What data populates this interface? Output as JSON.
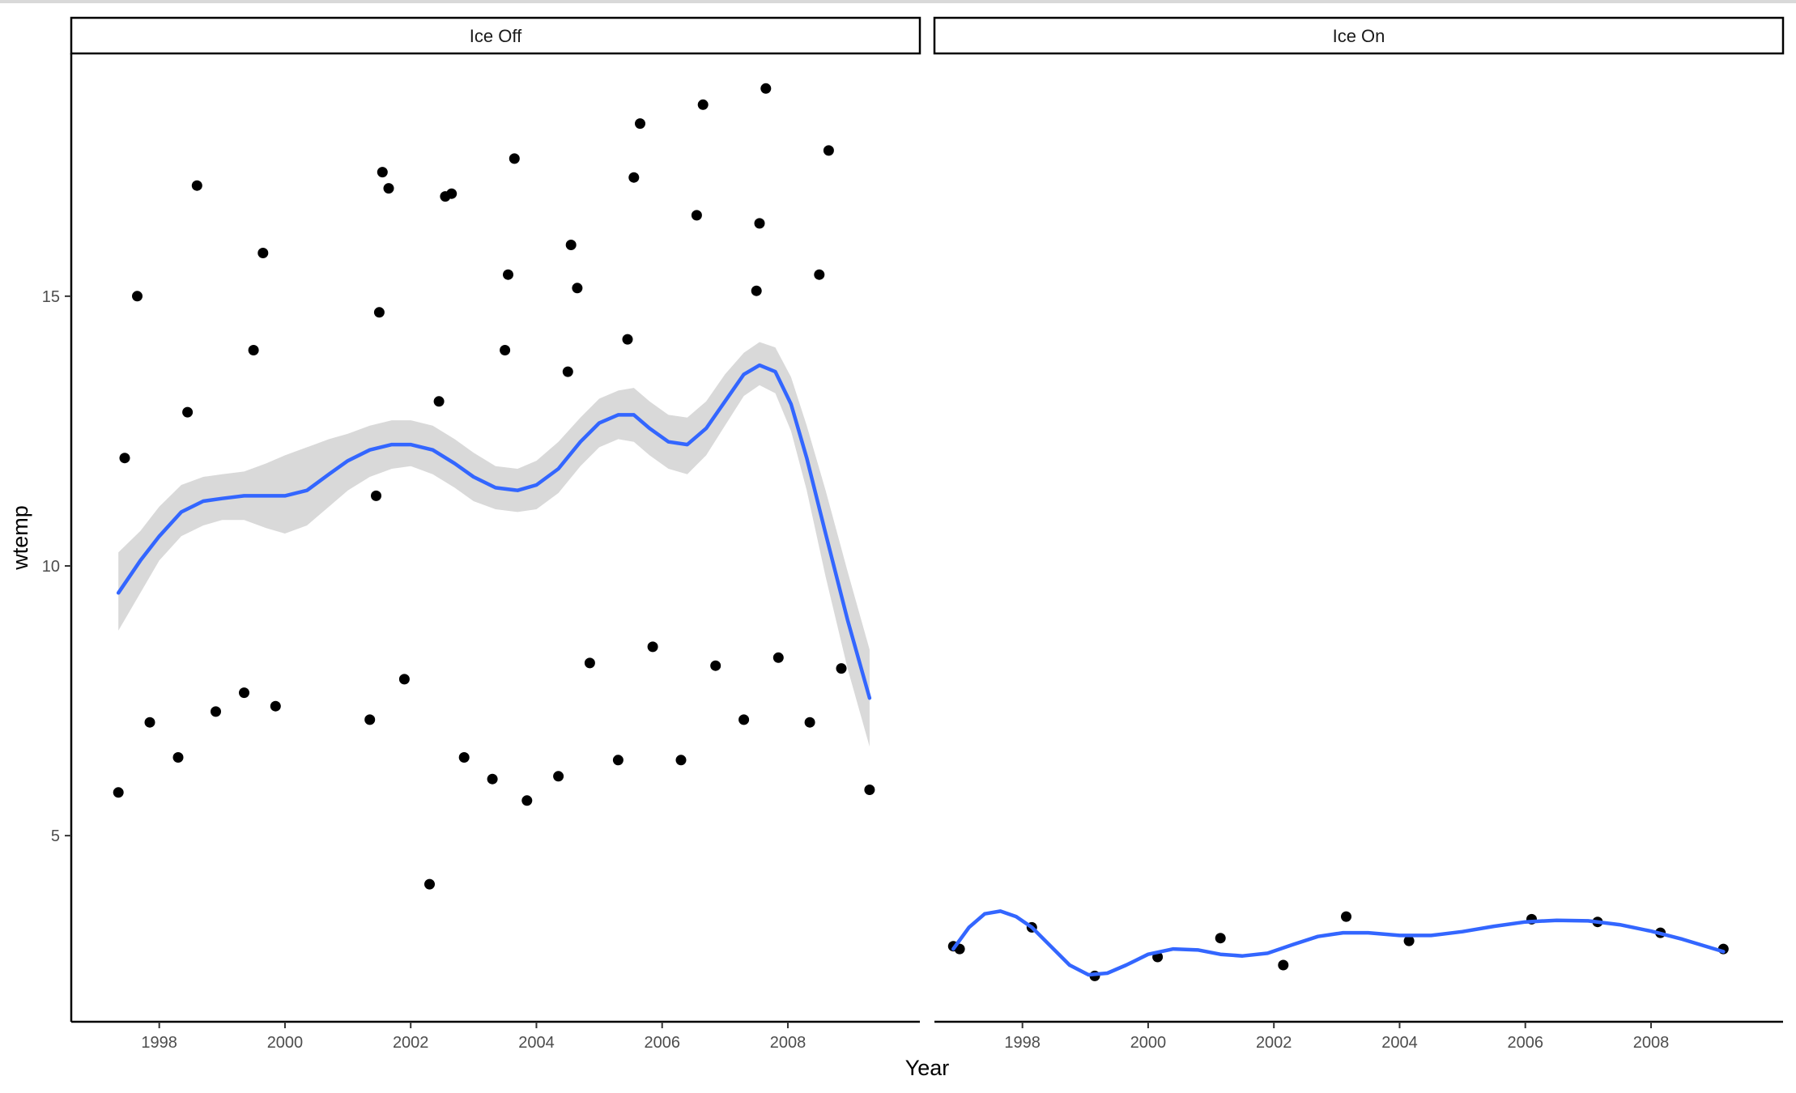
{
  "chart_data": {
    "type": "scatter",
    "xlabel": "Year",
    "ylabel": "wtemp",
    "x_ticks": [
      1998,
      2000,
      2002,
      2004,
      2006,
      2008
    ],
    "y_ticks": [
      5,
      10,
      15
    ],
    "xlim": [
      1996.6,
      2010.1
    ],
    "ylim": [
      1.55,
      19.5
    ],
    "grid": false,
    "point_color": "#000000",
    "smooth_color": "#3366FF",
    "ribbon_color": "#d9d9d9",
    "panels": [
      {
        "title": "Ice Off",
        "points": [
          {
            "x": 1997.35,
            "y": 5.8
          },
          {
            "x": 1997.45,
            "y": 12.0
          },
          {
            "x": 1997.65,
            "y": 15.0
          },
          {
            "x": 1997.85,
            "y": 7.1
          },
          {
            "x": 1998.3,
            "y": 6.45
          },
          {
            "x": 1998.45,
            "y": 12.85
          },
          {
            "x": 1998.6,
            "y": 17.05
          },
          {
            "x": 1998.9,
            "y": 7.3
          },
          {
            "x": 1999.35,
            "y": 7.65
          },
          {
            "x": 1999.5,
            "y": 14.0
          },
          {
            "x": 1999.65,
            "y": 15.8
          },
          {
            "x": 1999.85,
            "y": 7.4
          },
          {
            "x": 2001.35,
            "y": 7.15
          },
          {
            "x": 2001.45,
            "y": 11.3
          },
          {
            "x": 2001.5,
            "y": 14.7
          },
          {
            "x": 2001.55,
            "y": 17.3
          },
          {
            "x": 2001.65,
            "y": 17.0
          },
          {
            "x": 2001.9,
            "y": 7.9
          },
          {
            "x": 2002.3,
            "y": 4.1
          },
          {
            "x": 2002.45,
            "y": 13.05
          },
          {
            "x": 2002.55,
            "y": 16.85
          },
          {
            "x": 2002.65,
            "y": 16.9
          },
          {
            "x": 2002.85,
            "y": 6.45
          },
          {
            "x": 2003.3,
            "y": 6.05
          },
          {
            "x": 2003.5,
            "y": 14.0
          },
          {
            "x": 2003.55,
            "y": 15.4
          },
          {
            "x": 2003.65,
            "y": 17.55
          },
          {
            "x": 2003.85,
            "y": 5.65
          },
          {
            "x": 2004.35,
            "y": 6.1
          },
          {
            "x": 2004.5,
            "y": 13.6
          },
          {
            "x": 2004.55,
            "y": 15.95
          },
          {
            "x": 2004.65,
            "y": 15.15
          },
          {
            "x": 2004.85,
            "y": 8.2
          },
          {
            "x": 2005.3,
            "y": 6.4
          },
          {
            "x": 2005.45,
            "y": 14.2
          },
          {
            "x": 2005.55,
            "y": 17.2
          },
          {
            "x": 2005.65,
            "y": 18.2
          },
          {
            "x": 2005.85,
            "y": 8.5
          },
          {
            "x": 2006.3,
            "y": 6.4
          },
          {
            "x": 2006.55,
            "y": 16.5
          },
          {
            "x": 2006.65,
            "y": 18.55
          },
          {
            "x": 2006.85,
            "y": 8.15
          },
          {
            "x": 2007.3,
            "y": 7.15
          },
          {
            "x": 2007.5,
            "y": 15.1
          },
          {
            "x": 2007.55,
            "y": 16.35
          },
          {
            "x": 2007.65,
            "y": 18.85
          },
          {
            "x": 2007.85,
            "y": 8.3
          },
          {
            "x": 2008.35,
            "y": 7.1
          },
          {
            "x": 2008.5,
            "y": 15.4
          },
          {
            "x": 2008.65,
            "y": 17.7
          },
          {
            "x": 2008.85,
            "y": 8.1
          },
          {
            "x": 2009.3,
            "y": 5.85
          }
        ],
        "smooth": [
          {
            "x": 1997.35,
            "y": 9.5,
            "lo": 8.8,
            "hi": 10.25
          },
          {
            "x": 1997.7,
            "y": 10.1,
            "lo": 9.5,
            "hi": 10.65
          },
          {
            "x": 1998.0,
            "y": 10.55,
            "lo": 10.1,
            "hi": 11.1
          },
          {
            "x": 1998.35,
            "y": 11.0,
            "lo": 10.55,
            "hi": 11.5
          },
          {
            "x": 1998.7,
            "y": 11.2,
            "lo": 10.75,
            "hi": 11.65
          },
          {
            "x": 1999.0,
            "y": 11.25,
            "lo": 10.85,
            "hi": 11.7
          },
          {
            "x": 1999.35,
            "y": 11.3,
            "lo": 10.85,
            "hi": 11.75
          },
          {
            "x": 1999.7,
            "y": 11.3,
            "lo": 10.7,
            "hi": 11.9
          },
          {
            "x": 2000.0,
            "y": 11.3,
            "lo": 10.6,
            "hi": 12.05
          },
          {
            "x": 2000.35,
            "y": 11.4,
            "lo": 10.75,
            "hi": 12.2
          },
          {
            "x": 2000.7,
            "y": 11.7,
            "lo": 11.1,
            "hi": 12.35
          },
          {
            "x": 2001.0,
            "y": 11.95,
            "lo": 11.4,
            "hi": 12.45
          },
          {
            "x": 2001.35,
            "y": 12.15,
            "lo": 11.65,
            "hi": 12.6
          },
          {
            "x": 2001.7,
            "y": 12.25,
            "lo": 11.8,
            "hi": 12.7
          },
          {
            "x": 2002.0,
            "y": 12.25,
            "lo": 11.85,
            "hi": 12.7
          },
          {
            "x": 2002.35,
            "y": 12.15,
            "lo": 11.7,
            "hi": 12.6
          },
          {
            "x": 2002.7,
            "y": 11.9,
            "lo": 11.45,
            "hi": 12.35
          },
          {
            "x": 2003.0,
            "y": 11.65,
            "lo": 11.2,
            "hi": 12.1
          },
          {
            "x": 2003.35,
            "y": 11.45,
            "lo": 11.05,
            "hi": 11.85
          },
          {
            "x": 2003.7,
            "y": 11.4,
            "lo": 11.0,
            "hi": 11.8
          },
          {
            "x": 2004.0,
            "y": 11.5,
            "lo": 11.05,
            "hi": 11.95
          },
          {
            "x": 2004.35,
            "y": 11.8,
            "lo": 11.35,
            "hi": 12.3
          },
          {
            "x": 2004.7,
            "y": 12.3,
            "lo": 11.85,
            "hi": 12.75
          },
          {
            "x": 2005.0,
            "y": 12.65,
            "lo": 12.2,
            "hi": 13.1
          },
          {
            "x": 2005.3,
            "y": 12.8,
            "lo": 12.35,
            "hi": 13.25
          },
          {
            "x": 2005.55,
            "y": 12.8,
            "lo": 12.3,
            "hi": 13.3
          },
          {
            "x": 2005.8,
            "y": 12.55,
            "lo": 12.05,
            "hi": 13.05
          },
          {
            "x": 2006.1,
            "y": 12.3,
            "lo": 11.8,
            "hi": 12.8
          },
          {
            "x": 2006.4,
            "y": 12.25,
            "lo": 11.7,
            "hi": 12.75
          },
          {
            "x": 2006.7,
            "y": 12.55,
            "lo": 12.05,
            "hi": 13.05
          },
          {
            "x": 2007.0,
            "y": 13.05,
            "lo": 12.6,
            "hi": 13.55
          },
          {
            "x": 2007.3,
            "y": 13.55,
            "lo": 13.15,
            "hi": 13.95
          },
          {
            "x": 2007.55,
            "y": 13.72,
            "lo": 13.35,
            "hi": 14.15
          },
          {
            "x": 2007.8,
            "y": 13.6,
            "lo": 13.2,
            "hi": 14.05
          },
          {
            "x": 2008.05,
            "y": 13.0,
            "lo": 12.5,
            "hi": 13.5
          },
          {
            "x": 2008.3,
            "y": 12.0,
            "lo": 11.4,
            "hi": 12.6
          },
          {
            "x": 2008.6,
            "y": 10.6,
            "lo": 9.8,
            "hi": 11.4
          },
          {
            "x": 2008.95,
            "y": 9.0,
            "lo": 8.1,
            "hi": 9.9
          },
          {
            "x": 2009.3,
            "y": 7.55,
            "lo": 6.65,
            "hi": 8.45
          }
        ]
      },
      {
        "title": "Ice On",
        "points": [
          {
            "x": 1996.9,
            "y": 2.95
          },
          {
            "x": 1997.0,
            "y": 2.9
          },
          {
            "x": 1998.15,
            "y": 3.3
          },
          {
            "x": 1999.15,
            "y": 2.4
          },
          {
            "x": 2000.15,
            "y": 2.75
          },
          {
            "x": 2001.15,
            "y": 3.1
          },
          {
            "x": 2002.15,
            "y": 2.6
          },
          {
            "x": 2003.15,
            "y": 3.5
          },
          {
            "x": 2004.15,
            "y": 3.05
          },
          {
            "x": 2006.1,
            "y": 3.45
          },
          {
            "x": 2007.15,
            "y": 3.4
          },
          {
            "x": 2008.15,
            "y": 3.2
          },
          {
            "x": 2009.15,
            "y": 2.9
          }
        ],
        "smooth": [
          {
            "x": 1996.9,
            "y": 2.9
          },
          {
            "x": 1997.15,
            "y": 3.3
          },
          {
            "x": 1997.4,
            "y": 3.55
          },
          {
            "x": 1997.65,
            "y": 3.6
          },
          {
            "x": 1997.9,
            "y": 3.5
          },
          {
            "x": 1998.15,
            "y": 3.3
          },
          {
            "x": 1998.45,
            "y": 2.95
          },
          {
            "x": 1998.75,
            "y": 2.6
          },
          {
            "x": 1999.05,
            "y": 2.42
          },
          {
            "x": 1999.35,
            "y": 2.45
          },
          {
            "x": 1999.65,
            "y": 2.6
          },
          {
            "x": 2000.0,
            "y": 2.8
          },
          {
            "x": 2000.4,
            "y": 2.9
          },
          {
            "x": 2000.8,
            "y": 2.88
          },
          {
            "x": 2001.15,
            "y": 2.8
          },
          {
            "x": 2001.5,
            "y": 2.77
          },
          {
            "x": 2001.9,
            "y": 2.82
          },
          {
            "x": 2002.3,
            "y": 2.98
          },
          {
            "x": 2002.7,
            "y": 3.13
          },
          {
            "x": 2003.1,
            "y": 3.2
          },
          {
            "x": 2003.5,
            "y": 3.2
          },
          {
            "x": 2004.0,
            "y": 3.15
          },
          {
            "x": 2004.5,
            "y": 3.15
          },
          {
            "x": 2005.0,
            "y": 3.22
          },
          {
            "x": 2005.5,
            "y": 3.32
          },
          {
            "x": 2006.0,
            "y": 3.4
          },
          {
            "x": 2006.5,
            "y": 3.43
          },
          {
            "x": 2007.0,
            "y": 3.42
          },
          {
            "x": 2007.5,
            "y": 3.35
          },
          {
            "x": 2008.0,
            "y": 3.23
          },
          {
            "x": 2008.5,
            "y": 3.08
          },
          {
            "x": 2009.15,
            "y": 2.85
          }
        ]
      }
    ]
  }
}
